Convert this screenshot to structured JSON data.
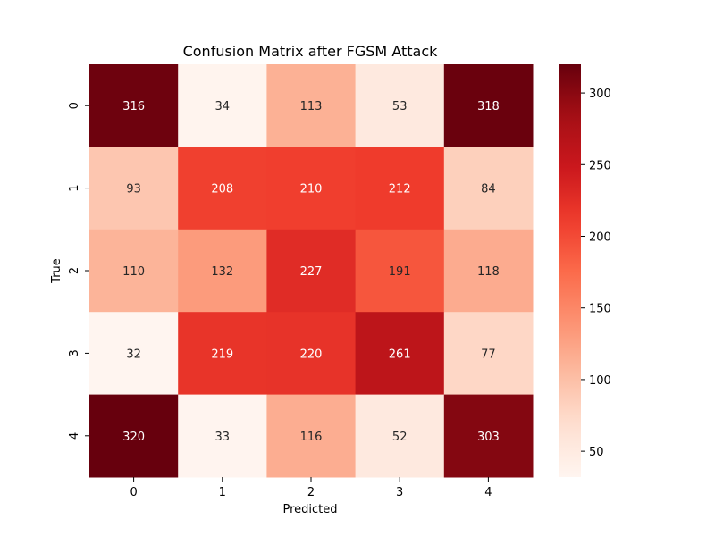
{
  "chart_data": {
    "type": "heatmap",
    "title": "Confusion Matrix after FGSM Attack",
    "xlabel": "Predicted",
    "ylabel": "True",
    "x_categories": [
      "0",
      "1",
      "2",
      "3",
      "4"
    ],
    "y_categories": [
      "0",
      "1",
      "2",
      "3",
      "4"
    ],
    "values": [
      [
        316,
        34,
        113,
        53,
        318
      ],
      [
        93,
        208,
        210,
        212,
        84
      ],
      [
        110,
        132,
        227,
        191,
        118
      ],
      [
        32,
        219,
        220,
        261,
        77
      ],
      [
        320,
        33,
        116,
        52,
        303
      ]
    ],
    "colormap": "Reds",
    "color_range": [
      32,
      320
    ],
    "colorbar_ticks": [
      50,
      100,
      150,
      200,
      250,
      300
    ],
    "colorbar_tick_labels": [
      "50",
      "100",
      "150",
      "200",
      "250",
      "300"
    ],
    "grid": false,
    "colorbar_position": "right"
  }
}
